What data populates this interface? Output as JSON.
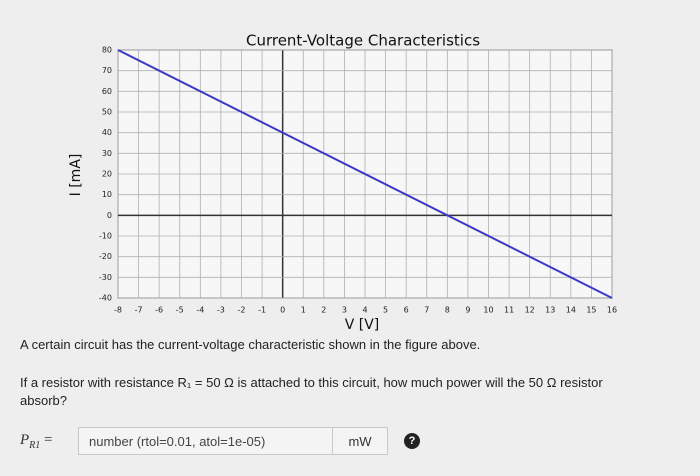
{
  "chart_data": {
    "type": "line",
    "title": "Current-Voltage Characteristics",
    "x_label": "V [V]",
    "y_label": "I [mA]",
    "x": [
      -8,
      16
    ],
    "series": [
      {
        "color": "#3a3ac8",
        "values": [
          80,
          -40
        ]
      }
    ],
    "xlim": [
      -8,
      16
    ],
    "ylim": [
      -40,
      80
    ],
    "xticks": [
      -8,
      -7,
      -6,
      -5,
      -4,
      -3,
      -2,
      -1,
      0,
      1,
      2,
      3,
      4,
      5,
      6,
      7,
      8,
      9,
      10,
      11,
      12,
      13,
      14,
      15,
      16
    ],
    "yticks": [
      -40,
      -30,
      -20,
      -10,
      0,
      10,
      20,
      30,
      40,
      50,
      60,
      70,
      80
    ],
    "grid": true
  },
  "question": {
    "intro": "A certain circuit has the current-voltage characteristic shown in the figure above.",
    "prompt": "If a resistor with resistance R₁ = 50 Ω is attached to this circuit, how much power will the 50 Ω resistor absorb?",
    "answer_symbol": "P",
    "answer_subscript": "R1",
    "answer_equals": "=",
    "placeholder": "number (rtol=0.01, atol=1e-05)",
    "unit": "mW",
    "help": "?"
  }
}
